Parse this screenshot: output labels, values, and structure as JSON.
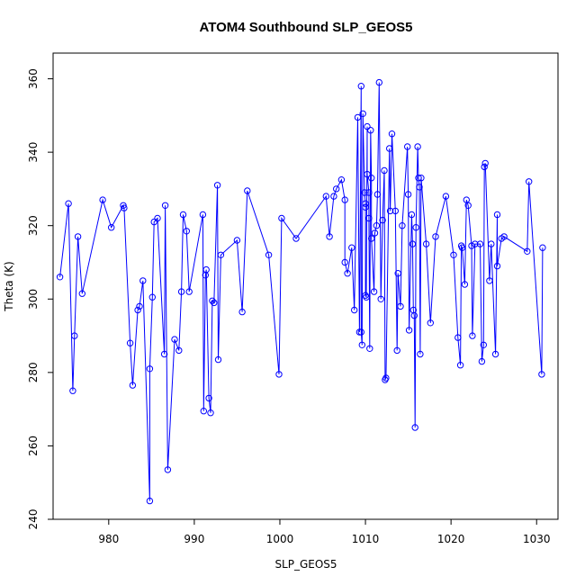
{
  "chart_data": {
    "type": "scatter",
    "title": "ATOM4 Southbound SLP_GEOS5",
    "xlabel": "SLP_GEOS5",
    "ylabel": "Theta (K)",
    "xlim": [
      973.5,
      1032.5
    ],
    "ylim": [
      240,
      367
    ],
    "xticks": [
      "980",
      "990",
      "1000",
      "1010",
      "1020",
      "1030"
    ],
    "yticks": [
      "240",
      "260",
      "280",
      "300",
      "320",
      "340",
      "360"
    ],
    "grid": false,
    "color": "#0000ff",
    "marker": "open-circle",
    "connected": true,
    "series": [
      {
        "points": [
          [
            974.3,
            306
          ],
          [
            975.3,
            326
          ],
          [
            975.8,
            275
          ],
          [
            976.0,
            290
          ],
          [
            976.4,
            317
          ],
          [
            976.9,
            301.5
          ],
          [
            979.3,
            327
          ],
          [
            980.3,
            319.5
          ],
          [
            981.7,
            325.5
          ],
          [
            981.8,
            324.8
          ],
          [
            982.5,
            288
          ],
          [
            982.8,
            276.5
          ],
          [
            983.4,
            297
          ],
          [
            983.6,
            298
          ],
          [
            984.0,
            305
          ],
          [
            984.8,
            245
          ],
          [
            984.8,
            281
          ],
          [
            985.1,
            300.5
          ],
          [
            985.3,
            321
          ],
          [
            985.7,
            322
          ],
          [
            986.5,
            285
          ],
          [
            986.6,
            325.5
          ],
          [
            986.9,
            253.5
          ],
          [
            987.7,
            289
          ],
          [
            988.2,
            286
          ],
          [
            988.5,
            302
          ],
          [
            988.7,
            323
          ],
          [
            989.1,
            318.5
          ],
          [
            989.4,
            302
          ],
          [
            991.0,
            323
          ],
          [
            991.1,
            269.5
          ],
          [
            991.3,
            306.5
          ],
          [
            991.4,
            308
          ],
          [
            991.7,
            273
          ],
          [
            991.9,
            269
          ],
          [
            992.1,
            299.5
          ],
          [
            992.3,
            299
          ],
          [
            992.7,
            331
          ],
          [
            992.8,
            283.5
          ],
          [
            993.1,
            312
          ],
          [
            995.0,
            316
          ],
          [
            995.6,
            296.5
          ],
          [
            996.2,
            329.5
          ],
          [
            998.7,
            312
          ],
          [
            999.9,
            279.5
          ],
          [
            1000.2,
            322
          ],
          [
            1001.9,
            316.5
          ],
          [
            1005.4,
            328
          ],
          [
            1005.8,
            317
          ],
          [
            1006.3,
            328
          ],
          [
            1006.6,
            330
          ],
          [
            1007.2,
            332.5
          ],
          [
            1007.6,
            327
          ],
          [
            1007.6,
            310
          ],
          [
            1007.9,
            307
          ],
          [
            1008.4,
            314
          ],
          [
            1008.7,
            297
          ],
          [
            1009.1,
            349.5
          ],
          [
            1009.3,
            291
          ],
          [
            1009.5,
            358
          ],
          [
            1009.5,
            291
          ],
          [
            1009.6,
            287.5
          ],
          [
            1009.7,
            350.5
          ],
          [
            1009.9,
            329
          ],
          [
            1010.0,
            326
          ],
          [
            1010.0,
            325
          ],
          [
            1010.0,
            301
          ],
          [
            1010.1,
            300.5
          ],
          [
            1010.2,
            347
          ],
          [
            1010.2,
            334
          ],
          [
            1010.4,
            329
          ],
          [
            1010.4,
            322
          ],
          [
            1010.5,
            286.5
          ],
          [
            1010.6,
            346
          ],
          [
            1010.7,
            333
          ],
          [
            1010.7,
            316.5
          ],
          [
            1011.0,
            302
          ],
          [
            1011.1,
            318
          ],
          [
            1011.3,
            320
          ],
          [
            1011.4,
            328.5
          ],
          [
            1011.6,
            359
          ],
          [
            1011.8,
            300
          ],
          [
            1012.0,
            321.5
          ],
          [
            1012.2,
            335
          ],
          [
            1012.3,
            278
          ],
          [
            1012.4,
            278.5
          ],
          [
            1012.8,
            341
          ],
          [
            1012.9,
            324
          ],
          [
            1013.1,
            345
          ],
          [
            1013.5,
            324
          ],
          [
            1013.7,
            286
          ],
          [
            1013.8,
            307
          ],
          [
            1014.1,
            298
          ],
          [
            1014.3,
            320
          ],
          [
            1014.9,
            341.5
          ],
          [
            1015.0,
            328.5
          ],
          [
            1015.1,
            291.5
          ],
          [
            1015.4,
            323
          ],
          [
            1015.5,
            315
          ],
          [
            1015.6,
            297
          ],
          [
            1015.7,
            295.5
          ],
          [
            1015.8,
            265
          ],
          [
            1015.9,
            319.5
          ],
          [
            1016.1,
            341.5
          ],
          [
            1016.2,
            333
          ],
          [
            1016.3,
            330.5
          ],
          [
            1016.4,
            285
          ],
          [
            1016.5,
            333
          ],
          [
            1017.1,
            315
          ],
          [
            1017.6,
            293.5
          ],
          [
            1018.2,
            317
          ],
          [
            1019.4,
            328
          ],
          [
            1020.3,
            312
          ],
          [
            1020.8,
            289.5
          ],
          [
            1021.1,
            282
          ],
          [
            1021.2,
            314.5
          ],
          [
            1021.3,
            314
          ],
          [
            1021.6,
            304
          ],
          [
            1021.8,
            327
          ],
          [
            1022.0,
            325.5
          ],
          [
            1022.4,
            314.5
          ],
          [
            1022.5,
            290
          ],
          [
            1022.8,
            315
          ],
          [
            1023.4,
            315
          ],
          [
            1023.6,
            283
          ],
          [
            1023.8,
            287.5
          ],
          [
            1023.9,
            336
          ],
          [
            1024.0,
            337
          ],
          [
            1024.5,
            305
          ],
          [
            1024.7,
            315
          ],
          [
            1025.2,
            285
          ],
          [
            1025.4,
            323
          ],
          [
            1025.4,
            309
          ],
          [
            1025.9,
            316.5
          ],
          [
            1026.2,
            317
          ],
          [
            1028.9,
            313
          ],
          [
            1029.1,
            332
          ],
          [
            1030.6,
            279.5
          ],
          [
            1030.7,
            314
          ]
        ]
      }
    ]
  }
}
